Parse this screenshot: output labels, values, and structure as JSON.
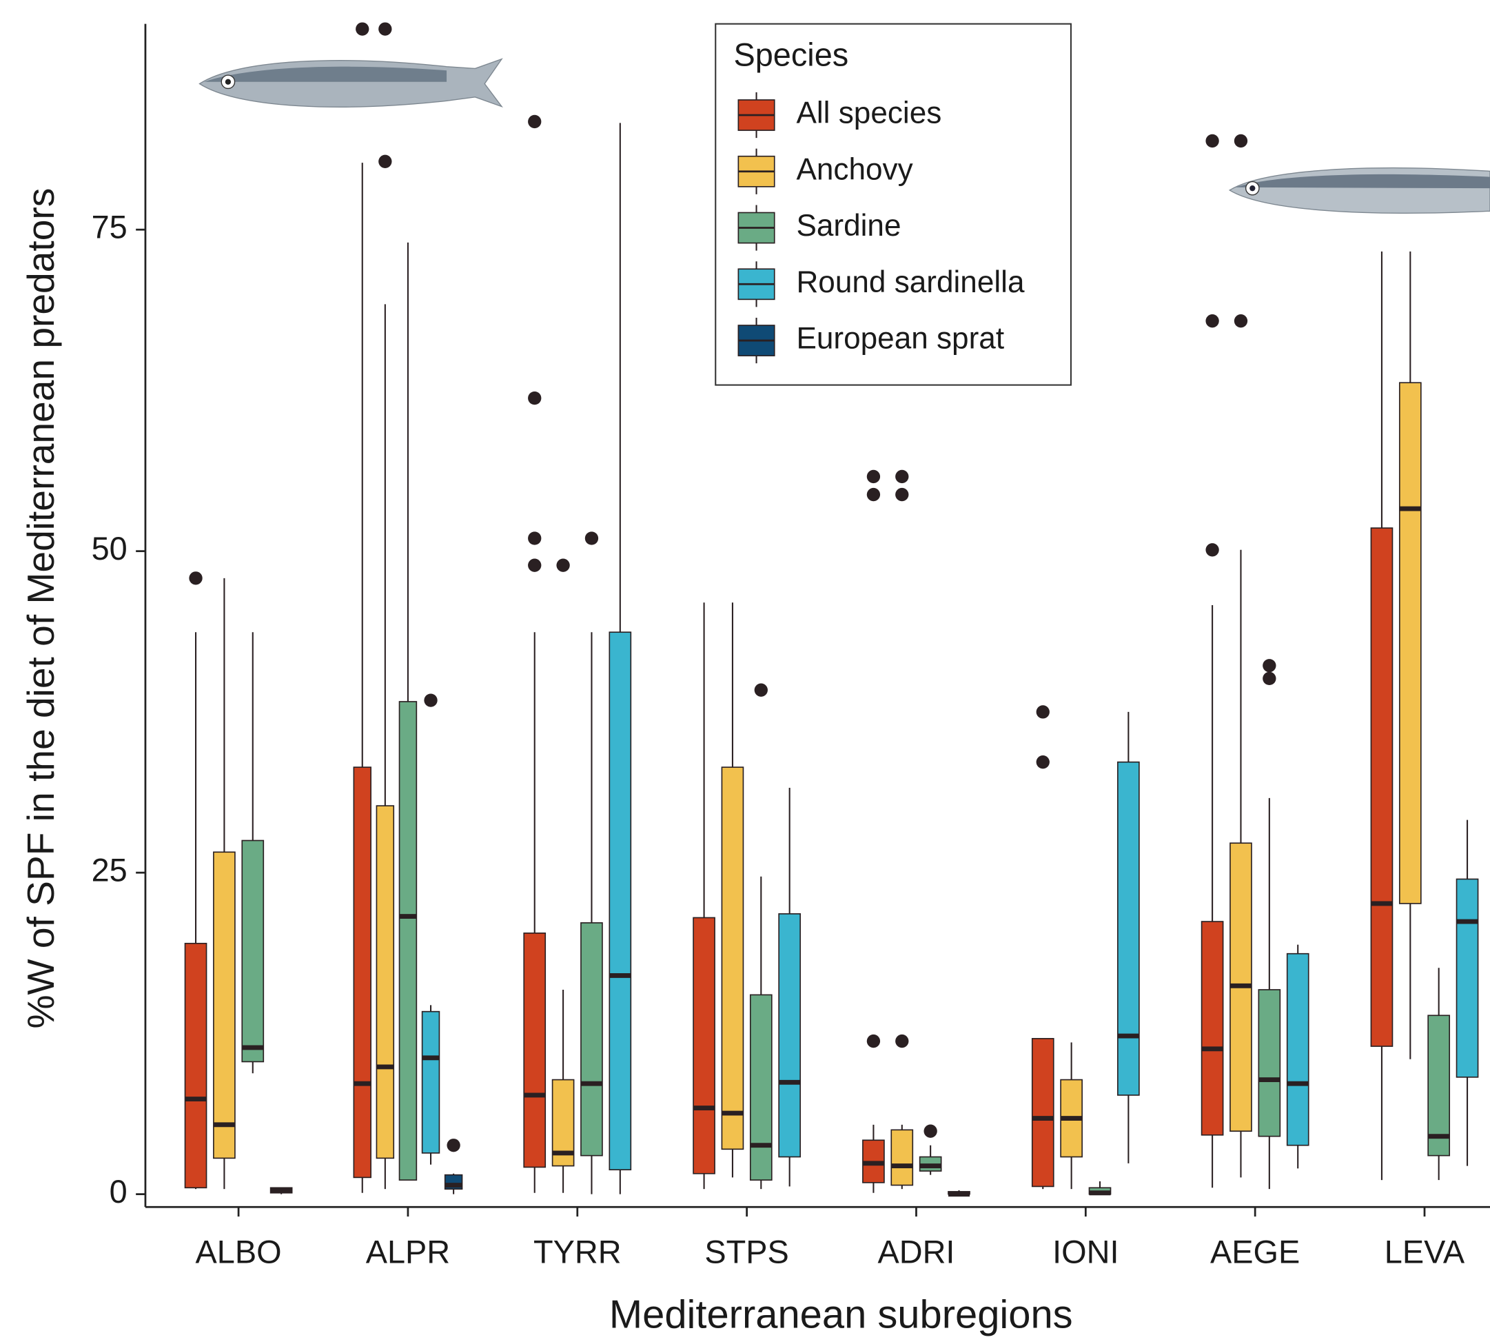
{
  "chart_data": {
    "type": "boxplot",
    "x_label": "Mediterranean subregions",
    "y_label": "%W of SPF in the diet of Mediterranean predators",
    "legend_title": "Species",
    "categories": [
      "ALBO",
      "ALPR",
      "TYRR",
      "STPS",
      "ADRI",
      "IONI",
      "AEGE",
      "LEVA"
    ],
    "ylim": [
      -1,
      91
    ],
    "yticks": [
      0,
      25,
      50,
      75
    ],
    "series": [
      {
        "name": "All species",
        "color": "#d0421f",
        "values": [
          {
            "min": 0.4,
            "q1": 0.5,
            "median": 7.4,
            "q3": 19.5,
            "max": 43.7,
            "outliers": [
              47.9
            ]
          },
          {
            "min": 0.1,
            "q1": 1.3,
            "median": 8.6,
            "q3": 33.2,
            "max": 80.2,
            "outliers": [
              90.6
            ]
          },
          {
            "min": 0.1,
            "q1": 2.1,
            "median": 7.7,
            "q3": 20.3,
            "max": 43.7,
            "outliers": [
              83.4,
              61.9,
              51.0,
              48.9
            ]
          },
          {
            "min": 0.4,
            "q1": 1.6,
            "median": 6.7,
            "q3": 21.5,
            "max": 46.0,
            "outliers": []
          },
          {
            "min": 0.1,
            "q1": 0.9,
            "median": 2.4,
            "q3": 4.2,
            "max": 5.4,
            "outliers": [
              55.8,
              54.4,
              11.9
            ]
          },
          {
            "min": 0.4,
            "q1": 0.6,
            "median": 5.9,
            "q3": 12.1,
            "max": 12.1,
            "outliers": [
              37.5,
              33.6
            ]
          },
          {
            "min": 0.5,
            "q1": 4.6,
            "median": 11.3,
            "q3": 21.2,
            "max": 45.8,
            "outliers": [
              81.9,
              67.9,
              50.1
            ]
          },
          {
            "min": 1.1,
            "q1": 11.5,
            "median": 22.6,
            "q3": 51.8,
            "max": 73.3,
            "outliers": []
          }
        ]
      },
      {
        "name": "Anchovy",
        "color": "#f2c14e",
        "values": [
          {
            "min": 0.4,
            "q1": 2.8,
            "median": 5.4,
            "q3": 26.6,
            "max": 47.9,
            "outliers": []
          },
          {
            "min": 0.4,
            "q1": 2.8,
            "median": 9.9,
            "q3": 30.2,
            "max": 69.2,
            "outliers": [
              90.6,
              80.3
            ]
          },
          {
            "min": 0.1,
            "q1": 2.2,
            "median": 3.2,
            "q3": 8.9,
            "max": 15.9,
            "outliers": [
              48.9
            ]
          },
          {
            "min": 1.3,
            "q1": 3.5,
            "median": 6.3,
            "q3": 33.2,
            "max": 46.0,
            "outliers": []
          },
          {
            "min": 0.4,
            "q1": 0.7,
            "median": 2.2,
            "q3": 5.0,
            "max": 5.4,
            "outliers": [
              55.8,
              54.4,
              11.9
            ]
          },
          {
            "min": 0.4,
            "q1": 2.9,
            "median": 5.9,
            "q3": 8.9,
            "max": 11.8,
            "outliers": []
          },
          {
            "min": 1.3,
            "q1": 4.9,
            "median": 16.2,
            "q3": 27.3,
            "max": 50.1,
            "outliers": [
              81.9,
              67.9
            ]
          },
          {
            "min": 10.5,
            "q1": 22.6,
            "median": 53.3,
            "q3": 63.1,
            "max": 73.3,
            "outliers": []
          }
        ]
      },
      {
        "name": "Sardine",
        "color": "#6aab85",
        "values": [
          {
            "min": 9.4,
            "q1": 10.3,
            "median": 11.4,
            "q3": 27.5,
            "max": 43.7,
            "outliers": []
          },
          {
            "min": 1.1,
            "q1": 1.1,
            "median": 21.6,
            "q3": 38.3,
            "max": 74.0,
            "outliers": []
          },
          {
            "min": 0,
            "q1": 3.0,
            "median": 8.6,
            "q3": 21.1,
            "max": 43.7,
            "outliers": [
              51.0
            ]
          },
          {
            "min": 0.4,
            "q1": 1.1,
            "median": 3.8,
            "q3": 15.5,
            "max": 24.7,
            "outliers": [
              39.2
            ]
          },
          {
            "min": 1.5,
            "q1": 1.8,
            "median": 2.2,
            "q3": 2.9,
            "max": 3.8,
            "outliers": [
              4.9
            ]
          },
          {
            "min": 0,
            "q1": 0,
            "median": 0.1,
            "q3": 0.5,
            "max": 1.0,
            "outliers": []
          },
          {
            "min": 0.4,
            "q1": 4.5,
            "median": 8.9,
            "q3": 15.9,
            "max": 30.8,
            "outliers": [
              41.1,
              40.1
            ]
          },
          {
            "min": 1.1,
            "q1": 3.0,
            "median": 4.5,
            "q3": 13.9,
            "max": 17.6,
            "outliers": []
          }
        ]
      },
      {
        "name": "Round sardinella",
        "color": "#3ab5cf",
        "values": [
          null,
          {
            "min": 2.3,
            "q1": 3.2,
            "median": 10.6,
            "q3": 14.2,
            "max": 14.7,
            "outliers": [
              38.4
            ]
          },
          {
            "min": 0,
            "q1": 1.9,
            "median": 17.0,
            "q3": 43.7,
            "max": 83.3,
            "outliers": []
          },
          {
            "min": 0.6,
            "q1": 2.9,
            "median": 8.7,
            "q3": 21.8,
            "max": 31.6,
            "outliers": []
          },
          null,
          {
            "min": 2.4,
            "q1": 7.7,
            "median": 12.3,
            "q3": 33.6,
            "max": 37.5,
            "outliers": []
          },
          {
            "min": 2.0,
            "q1": 3.8,
            "median": 8.6,
            "q3": 18.7,
            "max": 19.4,
            "outliers": []
          },
          {
            "min": 2.2,
            "q1": 9.1,
            "median": 21.2,
            "q3": 24.5,
            "max": 29.1,
            "outliers": []
          }
        ]
      },
      {
        "name": "European sprat",
        "color": "#0f4a75",
        "values": [
          {
            "min": 0,
            "q1": 0.1,
            "median": 0.3,
            "q3": 0.5,
            "max": 0.5,
            "outliers": []
          },
          {
            "min": 0,
            "q1": 0.4,
            "median": 0.7,
            "q3": 1.5,
            "max": 1.6,
            "outliers": [
              3.8
            ]
          },
          null,
          null,
          {
            "min": 0,
            "q1": 0,
            "median": 0,
            "q3": 0.2,
            "max": 0.3,
            "outliers": []
          },
          null,
          null,
          null
        ]
      }
    ]
  }
}
